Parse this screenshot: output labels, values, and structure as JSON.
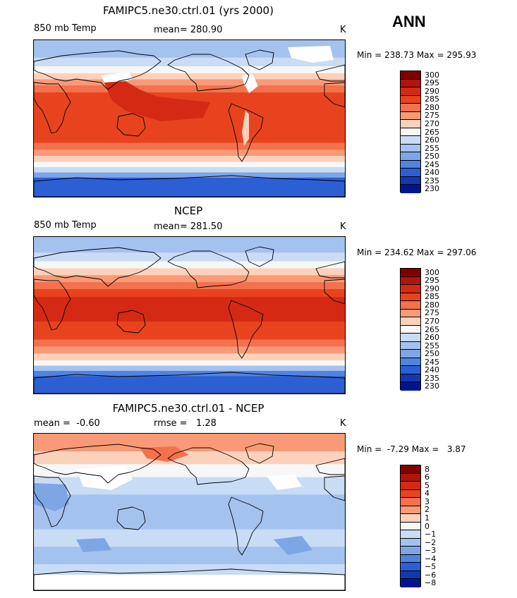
{
  "season": "ANN",
  "panels": [
    {
      "title": "FAMIPC5.ne30.ctrl.01 (yrs 2000)",
      "left_label": "850 mb Temp",
      "stat_label": "mean=",
      "stat_value": "280.90",
      "stat2_label": "",
      "stat2_value": "",
      "units": "K",
      "min_label": "Min =",
      "min_value": "238.73",
      "max_label": "Max =",
      "max_value": "295.93",
      "scale": "abs",
      "ticks": [
        "300",
        "295",
        "290",
        "285",
        "280",
        "275",
        "270",
        "265",
        "260",
        "255",
        "250",
        "245",
        "240",
        "235",
        "230"
      ]
    },
    {
      "title": "NCEP",
      "left_label": "850 mb Temp",
      "stat_label": "mean=",
      "stat_value": "281.50",
      "stat2_label": "",
      "stat2_value": "",
      "units": "K",
      "min_label": "Min =",
      "min_value": "234.62",
      "max_label": "Max =",
      "max_value": "297.06",
      "scale": "abs",
      "ticks": [
        "300",
        "295",
        "290",
        "285",
        "280",
        "275",
        "270",
        "265",
        "260",
        "255",
        "250",
        "245",
        "240",
        "235",
        "230"
      ]
    },
    {
      "title": "FAMIPC5.ne30.ctrl.01 - NCEP",
      "left_label": "mean =",
      "stat_label": "",
      "stat_value": "-0.60",
      "stat2_label": "rmse =",
      "stat2_value": "1.28",
      "units": "K",
      "min_label": "Min =",
      "min_value": "-7.29",
      "max_label": "Max =",
      "max_value": "3.87",
      "scale": "diff",
      "ticks": [
        "8",
        "6",
        "5",
        "4",
        "3",
        "2",
        "1",
        "0",
        "−1",
        "−2",
        "−3",
        "−4",
        "−5",
        "−6",
        "−8"
      ]
    }
  ],
  "colors": {
    "abs": [
      "#800000",
      "#b0150c",
      "#d42a14",
      "#e8431f",
      "#f4714d",
      "#f89a78",
      "#fcd1bc",
      "#f7f7f7",
      "#c9dcf5",
      "#a4c2ee",
      "#7ea6e5",
      "#5184df",
      "#2c5fd3",
      "#1238b0",
      "#001490"
    ],
    "diff": [
      "#800000",
      "#b0150c",
      "#d42a14",
      "#e8431f",
      "#f4714d",
      "#f89a78",
      "#fcd1bc",
      "#f7f7f7",
      "#c9dcf5",
      "#a4c2ee",
      "#7ea6e5",
      "#5184df",
      "#2c5fd3",
      "#1238b0",
      "#001490"
    ]
  }
}
